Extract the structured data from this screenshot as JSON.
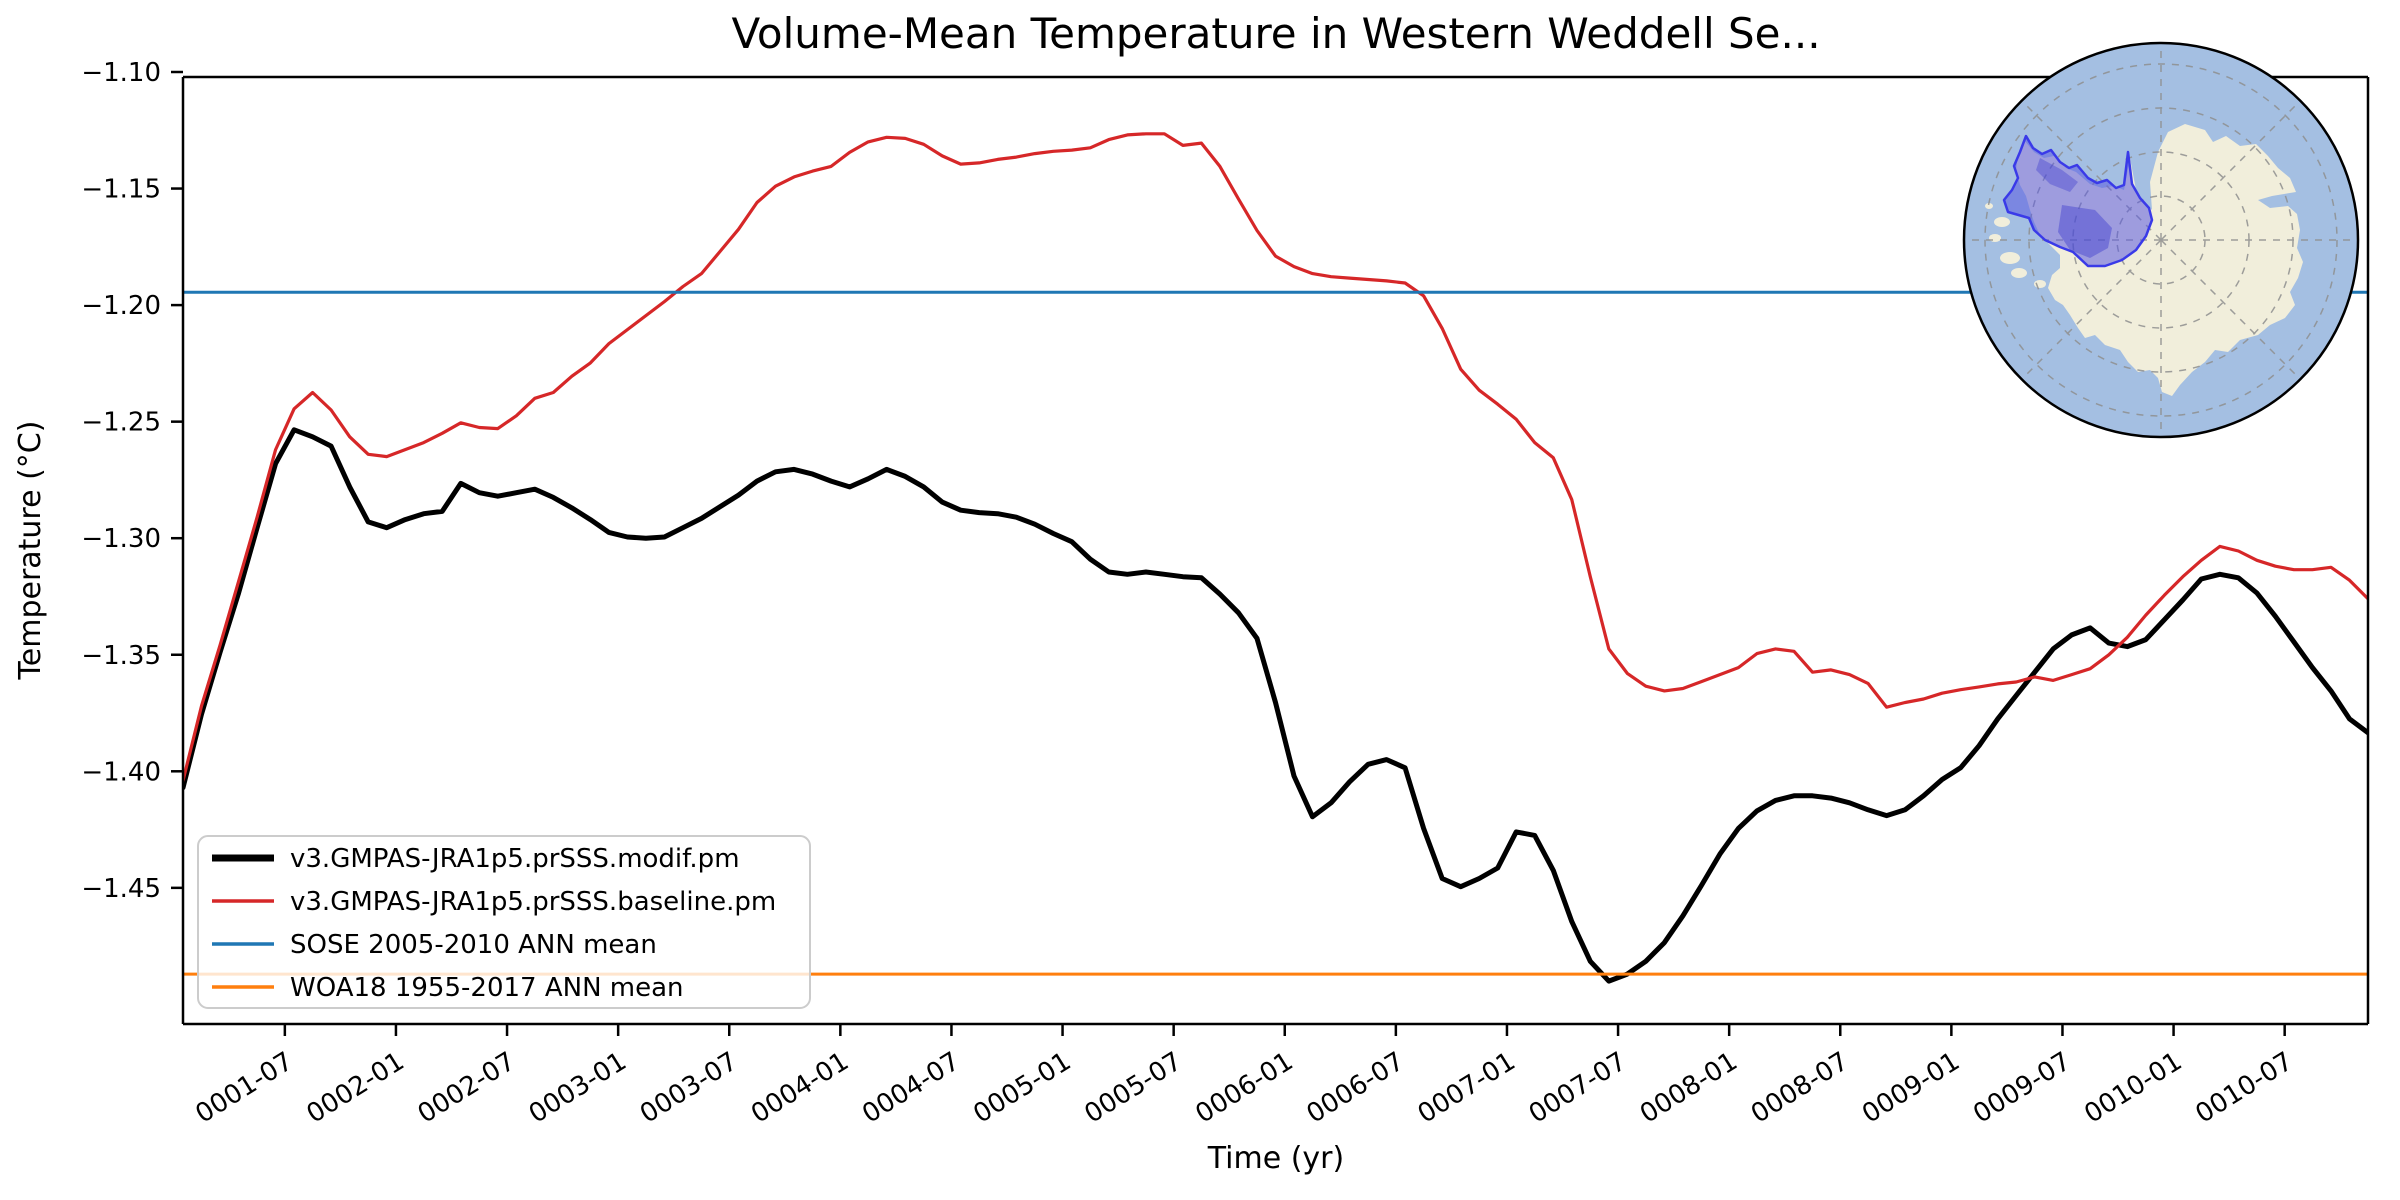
{
  "title": "Volume-Mean Temperature in Western Weddell Se...",
  "axes": {
    "xlabel": "Time (yr)",
    "ylabel": "Temperature (°C)",
    "ytick_labels": [
      "−1.10",
      "−1.15",
      "−1.20",
      "−1.25",
      "−1.30",
      "−1.35",
      "−1.40",
      "−1.45"
    ],
    "ytick_values": [
      -1.1,
      -1.15,
      -1.2,
      -1.25,
      -1.3,
      -1.35,
      -1.4,
      -1.45
    ],
    "xtick_labels": [
      "0001-07",
      "0002-01",
      "0002-07",
      "0003-01",
      "0003-07",
      "0004-01",
      "0004-07",
      "0005-01",
      "0005-07",
      "0006-01",
      "0006-07",
      "0007-01",
      "0007-07",
      "0008-01",
      "0008-07",
      "0009-01",
      "0009-07",
      "0010-01",
      "0010-07"
    ],
    "xtick_month_indices": [
      6,
      12,
      18,
      24,
      30,
      36,
      42,
      48,
      54,
      60,
      66,
      72,
      78,
      84,
      90,
      96,
      102,
      108,
      114
    ]
  },
  "legend": {
    "entries": [
      {
        "label": "v3.GMPAS-JRA1p5.prSSS.modif.pm",
        "color": "#000000",
        "sample_width": 7
      },
      {
        "label": "v3.GMPAS-JRA1p5.prSSS.baseline.pm",
        "color": "#d62728",
        "sample_width": 3.5
      },
      {
        "label": "SOSE 2005-2010 ANN mean",
        "color": "#1f77b4",
        "sample_width": 3.5
      },
      {
        "label": "WOA18 1955-2017 ANN mean",
        "color": "#ff7f0e",
        "sample_width": 3.5
      }
    ]
  },
  "chart_data": {
    "type": "line",
    "title": "Volume-Mean Temperature in Western Weddell Se...",
    "xlabel": "Time (yr)",
    "ylabel": "Temperature (°C)",
    "ylim": [
      -1.508,
      -1.102
    ],
    "x_start": "0001-01",
    "x_end": "0010-11",
    "x_step": "1 month",
    "grid": false,
    "legend_position": "lower left",
    "x_months": [
      "0001-01",
      "0001-02",
      "0001-03",
      "0001-04",
      "0001-05",
      "0001-06",
      "0001-07",
      "0001-08",
      "0001-09",
      "0001-10",
      "0001-11",
      "0001-12",
      "0002-01",
      "0002-02",
      "0002-03",
      "0002-04",
      "0002-05",
      "0002-06",
      "0002-07",
      "0002-08",
      "0002-09",
      "0002-10",
      "0002-11",
      "0002-12",
      "0003-01",
      "0003-02",
      "0003-03",
      "0003-04",
      "0003-05",
      "0003-06",
      "0003-07",
      "0003-08",
      "0003-09",
      "0003-10",
      "0003-11",
      "0003-12",
      "0004-01",
      "0004-02",
      "0004-03",
      "0004-04",
      "0004-05",
      "0004-06",
      "0004-07",
      "0004-08",
      "0004-09",
      "0004-10",
      "0004-11",
      "0004-12",
      "0005-01",
      "0005-02",
      "0005-03",
      "0005-04",
      "0005-05",
      "0005-06",
      "0005-07",
      "0005-08",
      "0005-09",
      "0005-10",
      "0005-11",
      "0005-12",
      "0006-01",
      "0006-02",
      "0006-03",
      "0006-04",
      "0006-05",
      "0006-06",
      "0006-07",
      "0006-08",
      "0006-09",
      "0006-10",
      "0006-11",
      "0006-12",
      "0007-01",
      "0007-02",
      "0007-03",
      "0007-04",
      "0007-05",
      "0007-06",
      "0007-07",
      "0007-08",
      "0007-09",
      "0007-10",
      "0007-11",
      "0007-12",
      "0008-01",
      "0008-02",
      "0008-03",
      "0008-04",
      "0008-05",
      "0008-06",
      "0008-07",
      "0008-08",
      "0008-09",
      "0008-10",
      "0008-11",
      "0008-12",
      "0009-01",
      "0009-02",
      "0009-03",
      "0009-04",
      "0009-05",
      "0009-06",
      "0009-07",
      "0009-08",
      "0009-09",
      "0009-10",
      "0009-11",
      "0009-12",
      "0010-01",
      "0010-02",
      "0010-03",
      "0010-04",
      "0010-05",
      "0010-06",
      "0010-07",
      "0010-08",
      "0010-09",
      "0010-10",
      "0010-11"
    ],
    "series": [
      {
        "name": "v3.GMPAS-JRA1p5.prSSS.modif.pm",
        "color": "#000000",
        "linewidth": 5,
        "values": [
          -1.407,
          -1.3755,
          -1.349,
          -1.3235,
          -1.2955,
          -1.268,
          -1.2535,
          -1.2565,
          -1.2605,
          -1.278,
          -1.293,
          -1.2955,
          -1.292,
          -1.2895,
          -1.2885,
          -1.2765,
          -1.2805,
          -1.282,
          -1.2805,
          -1.279,
          -1.2825,
          -1.287,
          -1.292,
          -1.2975,
          -1.2995,
          -1.3,
          -1.2995,
          -1.2955,
          -1.2915,
          -1.2865,
          -1.2815,
          -1.2755,
          -1.2715,
          -1.2705,
          -1.2725,
          -1.2755,
          -1.278,
          -1.2745,
          -1.2705,
          -1.2735,
          -1.278,
          -1.2845,
          -1.288,
          -1.289,
          -1.2895,
          -1.291,
          -1.294,
          -1.298,
          -1.3015,
          -1.309,
          -1.3145,
          -1.3155,
          -1.3145,
          -1.3155,
          -1.3165,
          -1.317,
          -1.324,
          -1.332,
          -1.343,
          -1.3705,
          -1.402,
          -1.4195,
          -1.4135,
          -1.4045,
          -1.397,
          -1.395,
          -1.3985,
          -1.4245,
          -1.446,
          -1.4495,
          -1.446,
          -1.4415,
          -1.426,
          -1.4275,
          -1.4425,
          -1.4645,
          -1.4815,
          -1.49,
          -1.487,
          -1.4815,
          -1.4735,
          -1.462,
          -1.449,
          -1.4355,
          -1.4245,
          -1.417,
          -1.4125,
          -1.4105,
          -1.4105,
          -1.4115,
          -1.4135,
          -1.4165,
          -1.419,
          -1.4165,
          -1.4105,
          -1.4035,
          -1.3985,
          -1.389,
          -1.3775,
          -1.3675,
          -1.3575,
          -1.3475,
          -1.3415,
          -1.3385,
          -1.345,
          -1.3465,
          -1.3435,
          -1.335,
          -1.3265,
          -1.3175,
          -1.3155,
          -1.317,
          -1.3235,
          -1.3335,
          -1.3445,
          -1.3555,
          -1.3655,
          -1.3775,
          -1.3835
        ]
      },
      {
        "name": "v3.GMPAS-JRA1p5.prSSS.baseline.pm",
        "color": "#d62728",
        "linewidth": 3.2,
        "values": [
          -1.404,
          -1.372,
          -1.346,
          -1.3185,
          -1.291,
          -1.262,
          -1.2445,
          -1.2375,
          -1.245,
          -1.2565,
          -1.264,
          -1.265,
          -1.262,
          -1.259,
          -1.255,
          -1.2505,
          -1.2525,
          -1.253,
          -1.2475,
          -1.24,
          -1.2375,
          -1.2305,
          -1.2248,
          -1.2165,
          -1.2105,
          -1.2045,
          -1.1985,
          -1.192,
          -1.1865,
          -1.177,
          -1.1675,
          -1.156,
          -1.149,
          -1.145,
          -1.1425,
          -1.1405,
          -1.1345,
          -1.13,
          -1.128,
          -1.1285,
          -1.131,
          -1.136,
          -1.1395,
          -1.139,
          -1.1375,
          -1.1365,
          -1.135,
          -1.134,
          -1.1335,
          -1.1325,
          -1.129,
          -1.127,
          -1.1265,
          -1.1265,
          -1.1315,
          -1.1305,
          -1.1405,
          -1.1545,
          -1.168,
          -1.179,
          -1.1835,
          -1.1865,
          -1.1878,
          -1.1884,
          -1.189,
          -1.1896,
          -1.1905,
          -1.196,
          -1.21,
          -1.2275,
          -1.2365,
          -1.2425,
          -1.249,
          -1.259,
          -1.2655,
          -1.2835,
          -1.3165,
          -1.3475,
          -1.358,
          -1.3635,
          -1.3655,
          -1.3645,
          -1.3615,
          -1.3585,
          -1.3555,
          -1.3495,
          -1.3475,
          -1.3485,
          -1.3575,
          -1.3565,
          -1.3585,
          -1.3623,
          -1.3725,
          -1.3705,
          -1.369,
          -1.3665,
          -1.365,
          -1.3638,
          -1.3625,
          -1.3617,
          -1.3595,
          -1.361,
          -1.3585,
          -1.356,
          -1.35,
          -1.3425,
          -1.333,
          -1.3245,
          -1.3165,
          -1.3095,
          -1.3035,
          -1.3055,
          -1.3095,
          -1.312,
          -1.3135,
          -1.3135,
          -1.3125,
          -1.318,
          -1.326
        ]
      }
    ],
    "ref_lines": [
      {
        "name": "SOSE 2005-2010 ANN mean",
        "value": -1.1945,
        "color": "#1f77b4",
        "linewidth": 3
      },
      {
        "name": "WOA18 1955-2017 ANN mean",
        "value": -1.487,
        "color": "#ff7f0e",
        "linewidth": 3
      }
    ]
  },
  "map_inset": {
    "description": "South polar stereographic locator map of Antarctica",
    "highlighted_region": "Western Weddell Sea",
    "colors": {
      "ocean": "#a4bfe2",
      "land": "#f1eedb",
      "graticule": "#8f8f8f",
      "region_fill": "#5a5ae0",
      "region_edge": "#3a3ae8",
      "border": "#000000"
    }
  }
}
